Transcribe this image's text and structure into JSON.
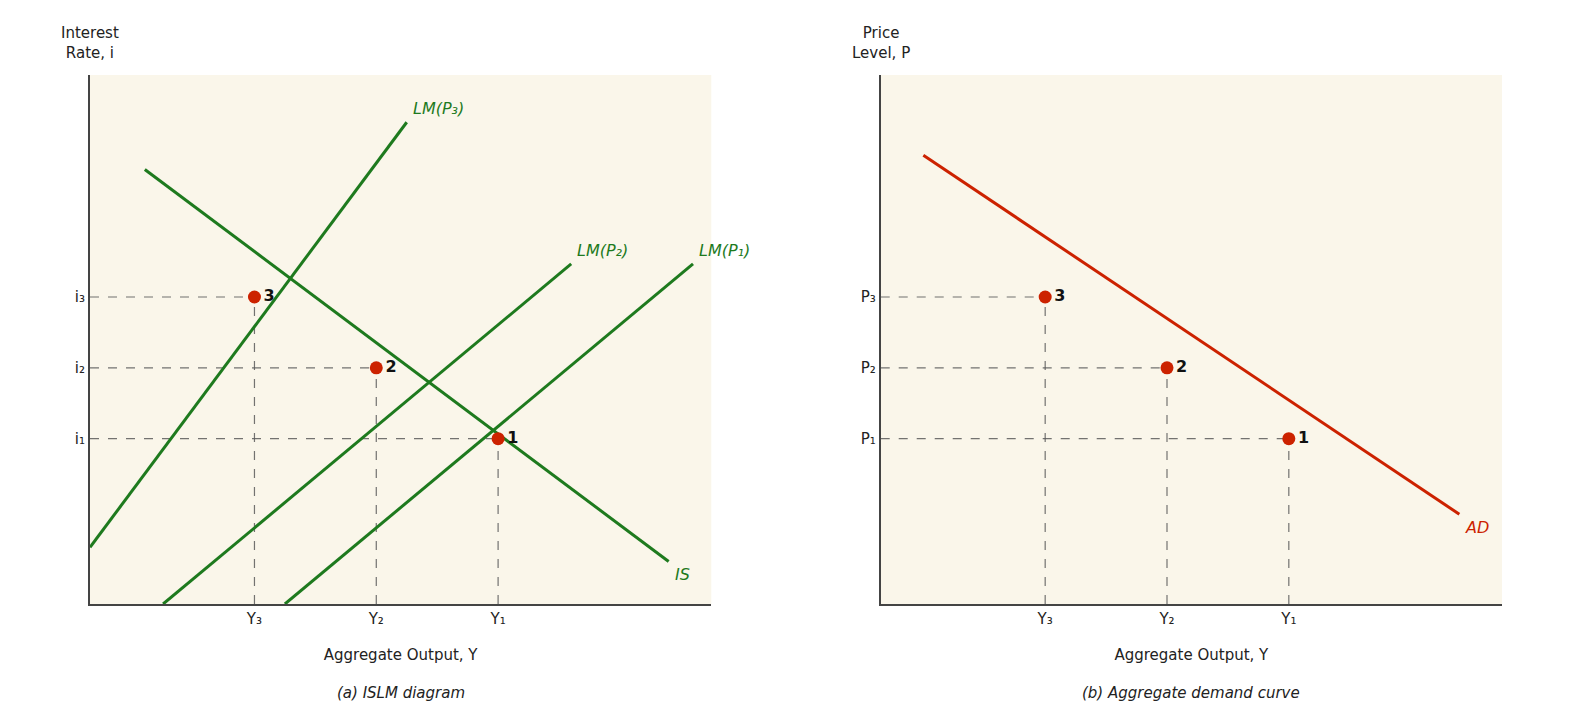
{
  "chart_data": [
    {
      "type": "line",
      "title": "(a) ISLM diagram",
      "xlabel": "Aggregate Output, Y",
      "ylabel": "Interest\nRate, i",
      "xlim": [
        0.3,
        10.5
      ],
      "ylim": [
        0.3,
        11.5
      ],
      "xticks": [
        {
          "value": 3.0,
          "label": "Y₃"
        },
        {
          "value": 5.0,
          "label": "Y₂"
        },
        {
          "value": 7.0,
          "label": "Y₁"
        }
      ],
      "yticks": [
        {
          "value": 3.8,
          "label": "i₁"
        },
        {
          "value": 5.3,
          "label": "i₂"
        },
        {
          "value": 6.8,
          "label": "i₃"
        }
      ],
      "grid": false,
      "series": [
        {
          "name": "IS",
          "type": "line",
          "line_style": "solid",
          "color": "#1e7a1e",
          "x": [
            1.2,
            9.8
          ],
          "values": [
            9.5,
            1.2
          ]
        },
        {
          "name": "LM(P₃)",
          "type": "line",
          "line_style": "solid",
          "color": "#1e7a1e",
          "x": [
            0.3,
            5.5
          ],
          "values": [
            1.5,
            10.5
          ]
        },
        {
          "name": "LM(P₂)",
          "type": "line",
          "line_style": "solid",
          "color": "#1e7a1e",
          "x": [
            1.5,
            8.2
          ],
          "values": [
            0.3,
            7.5
          ]
        },
        {
          "name": "LM(P₁)",
          "type": "line",
          "line_style": "solid",
          "color": "#1e7a1e",
          "x": [
            3.5,
            10.2
          ],
          "values": [
            0.3,
            7.5
          ]
        },
        {
          "type": "scatter",
          "marker": "circle",
          "color": "#cc2200",
          "x": [
            3.0,
            5.0,
            7.0
          ],
          "values": [
            6.8,
            5.3,
            3.8
          ],
          "labels": [
            "3",
            "2",
            "1"
          ]
        }
      ]
    },
    {
      "type": "line",
      "title": "(b) Aggregate demand curve",
      "xlabel": "Aggregate Output, Y",
      "ylabel": "Price\nLevel, P",
      "xlim": [
        0.3,
        10.5
      ],
      "ylim": [
        0.3,
        11.5
      ],
      "xticks": [
        {
          "value": 3.0,
          "label": "Y₃"
        },
        {
          "value": 5.0,
          "label": "Y₂"
        },
        {
          "value": 7.0,
          "label": "Y₁"
        }
      ],
      "yticks": [
        {
          "value": 3.8,
          "label": "P₁"
        },
        {
          "value": 5.3,
          "label": "P₂"
        },
        {
          "value": 6.8,
          "label": "P₃"
        }
      ],
      "grid": false,
      "series": [
        {
          "name": "AD",
          "type": "line",
          "line_style": "solid",
          "color": "#cc2200",
          "x": [
            1.0,
            9.8
          ],
          "values": [
            9.8,
            2.2
          ]
        },
        {
          "type": "scatter",
          "marker": "circle",
          "color": "#cc2200",
          "x": [
            3.0,
            5.0,
            7.0
          ],
          "values": [
            6.8,
            5.3,
            3.8
          ],
          "labels": [
            "3",
            "2",
            "1"
          ]
        }
      ]
    }
  ]
}
